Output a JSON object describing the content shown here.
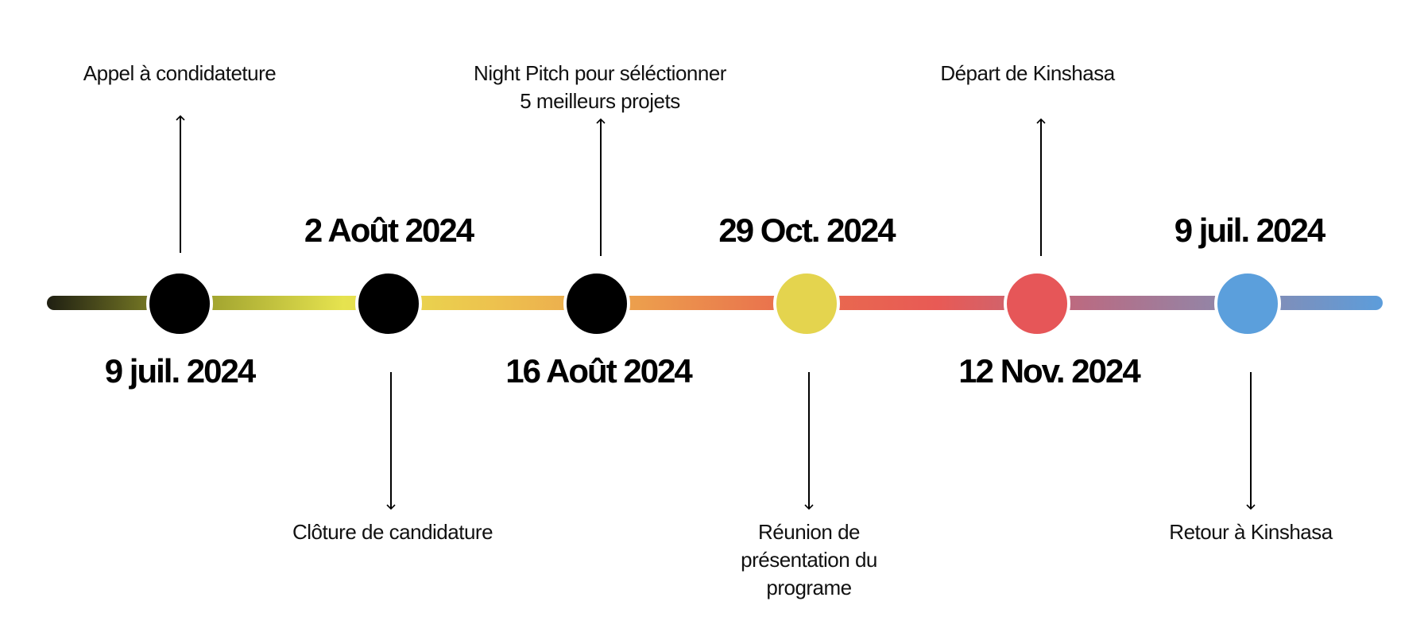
{
  "timeline": {
    "gradient_colors": [
      "#1f1f12",
      "#9a9d2c",
      "#e6e34f",
      "#edc24e",
      "#ec9d4d",
      "#e96e4d",
      "#e85a55",
      "#b86c84",
      "#8e88ab",
      "#5c9ddb"
    ],
    "events": [
      {
        "date": "9 juil. 2024",
        "label_lines": [
          "Appel à condidateture"
        ],
        "color": "#000000"
      },
      {
        "date": "2 Août 2024",
        "label_lines": [
          "Clôture de candidature"
        ],
        "color": "#000000"
      },
      {
        "date": "16 Août 2024",
        "label_lines": [
          "Night Pitch pour séléctionner",
          "5 meilleurs projets"
        ],
        "color": "#000000"
      },
      {
        "date": "29 Oct. 2024",
        "label_lines": [
          "Réunion de",
          "présentation du",
          "programe"
        ],
        "color": "#e4d44e"
      },
      {
        "date": "12 Nov. 2024",
        "label_lines": [
          "Départ de Kinshasa"
        ],
        "color": "#e65658"
      },
      {
        "date": "9 juil. 2024",
        "label_lines": [
          "Retour à Kinshasa"
        ],
        "color": "#5b9fdc"
      }
    ]
  }
}
